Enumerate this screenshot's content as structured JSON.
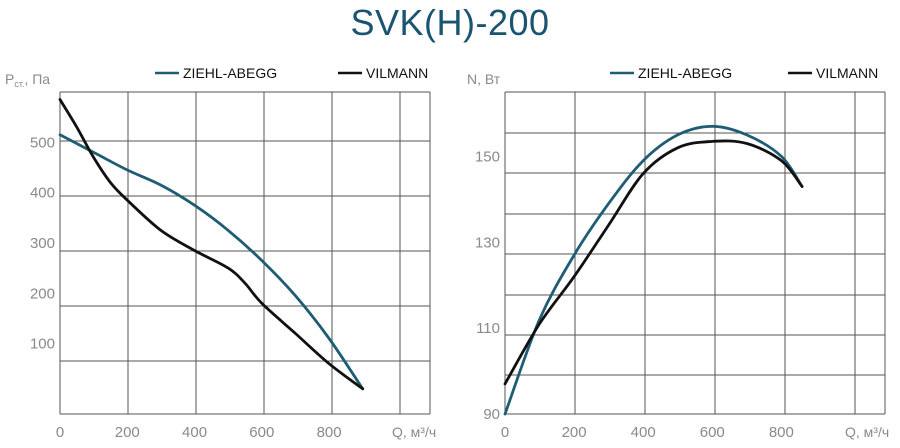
{
  "title": "SVK(H)-200",
  "colors": {
    "ziehl": "#1e5d73",
    "vilmann": "#111111",
    "grid": "#555555",
    "tick": "#8a8a8a"
  },
  "chart_data": [
    {
      "type": "line",
      "ylabel_main": "P",
      "ylabel_sub": "ст.",
      "ylabel_rest": ", Па",
      "xlabel": "Q, м³/ч",
      "xlim": [
        0,
        1100
      ],
      "ylim": [
        -40,
        600
      ],
      "xticks": [
        0,
        200,
        400,
        600,
        800
      ],
      "yticks": [
        100,
        200,
        300,
        400,
        500
      ],
      "legend": [
        "ZIEHL-ABEGG",
        "VILMANN"
      ],
      "series": [
        {
          "name": "ZIEHL-ABEGG",
          "x": [
            0,
            100,
            200,
            300,
            400,
            500,
            600,
            700,
            800,
            900
          ],
          "y": [
            515,
            480,
            445,
            415,
            375,
            325,
            265,
            195,
            110,
            10
          ]
        },
        {
          "name": "VILMANN",
          "x": [
            0,
            50,
            100,
            150,
            200,
            300,
            400,
            500,
            550,
            600,
            700,
            800,
            900
          ],
          "y": [
            585,
            530,
            470,
            420,
            385,
            325,
            285,
            250,
            220,
            180,
            120,
            60,
            10
          ]
        }
      ]
    },
    {
      "type": "line",
      "ylabel": "N, Вт",
      "xlabel": "Q, м³/ч",
      "xlim": [
        0,
        1100
      ],
      "ylim": [
        90,
        165
      ],
      "xticks": [
        0,
        200,
        400,
        600,
        800
      ],
      "yticks": [
        90,
        110,
        130,
        150
      ],
      "legend": [
        "ZIEHL-ABEGG",
        "VILMANN"
      ],
      "series": [
        {
          "name": "ZIEHL-ABEGG",
          "x": [
            0,
            100,
            200,
            300,
            400,
            500,
            600,
            700,
            800,
            860
          ],
          "y": [
            90,
            112,
            127,
            139,
            149,
            155,
            157,
            155,
            150,
            143
          ]
        },
        {
          "name": "VILMANN",
          "x": [
            0,
            100,
            200,
            300,
            400,
            500,
            600,
            700,
            800,
            860
          ],
          "y": [
            97,
            111,
            122,
            134,
            146,
            152,
            153.5,
            153,
            149,
            143
          ]
        }
      ]
    }
  ]
}
